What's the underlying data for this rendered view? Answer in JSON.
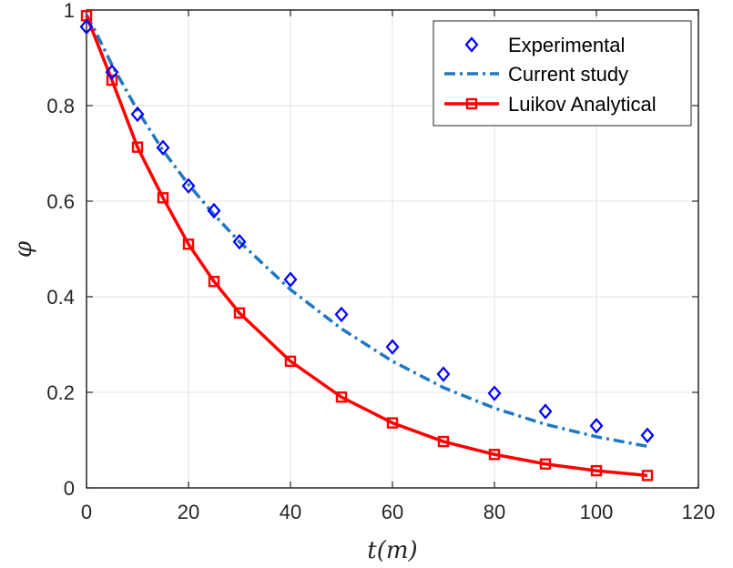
{
  "chart_data": {
    "type": "line",
    "title": "",
    "xlabel": "t(m)",
    "ylabel": "φ",
    "xlim": [
      0,
      120
    ],
    "ylim": [
      0,
      1
    ],
    "xticks": [
      0,
      20,
      40,
      60,
      80,
      100,
      120
    ],
    "yticks": [
      0,
      0.2,
      0.4,
      0.6,
      0.8,
      1
    ],
    "xtick_labels": [
      "0",
      "20",
      "40",
      "60",
      "80",
      "100",
      "120"
    ],
    "ytick_labels": [
      "0",
      "0.2",
      "0.4",
      "0.6",
      "0.8",
      "1"
    ],
    "grid": true,
    "legend_position": "top-right",
    "series": [
      {
        "name": "Experimental",
        "style": "markers",
        "marker": "diamond",
        "color": "#0000ff",
        "x": [
          0,
          5,
          10,
          15,
          20,
          25,
          30,
          40,
          50,
          60,
          70,
          80,
          90,
          100,
          110
        ],
        "y": [
          0.965,
          0.87,
          0.782,
          0.712,
          0.632,
          0.58,
          0.515,
          0.436,
          0.363,
          0.295,
          0.238,
          0.198,
          0.16,
          0.13,
          0.11
        ]
      },
      {
        "name": "Current study",
        "style": "dashdot",
        "color": "#1f78c1",
        "x": [
          0,
          2,
          5,
          10,
          15,
          20,
          25,
          30,
          40,
          50,
          60,
          70,
          80,
          90,
          100,
          110
        ],
        "y": [
          0.99,
          0.95,
          0.885,
          0.79,
          0.706,
          0.635,
          0.572,
          0.515,
          0.415,
          0.333,
          0.265,
          0.21,
          0.167,
          0.133,
          0.107,
          0.087
        ]
      },
      {
        "name": "Luikov Analytical",
        "style": "solid-square",
        "marker": "square",
        "color": "#ff0000",
        "x": [
          0,
          5,
          10,
          15,
          20,
          25,
          30,
          40,
          50,
          60,
          70,
          80,
          90,
          100,
          110
        ],
        "y": [
          0.988,
          0.853,
          0.713,
          0.607,
          0.51,
          0.432,
          0.366,
          0.265,
          0.19,
          0.136,
          0.097,
          0.07,
          0.05,
          0.036,
          0.026
        ]
      }
    ]
  }
}
